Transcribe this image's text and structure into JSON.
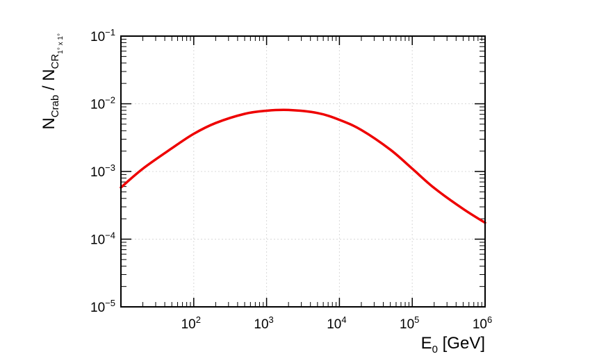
{
  "chart_data": {
    "type": "line",
    "xscale": "log",
    "yscale": "log",
    "xlim": [
      10,
      1000000
    ],
    "ylim": [
      1e-05,
      0.1
    ],
    "grid": true,
    "xlabel": {
      "main": "E",
      "sub": "0",
      "unit": " [GeV]"
    },
    "ylabel": {
      "main1": "N",
      "sub1": "Crab",
      "sep": " / N",
      "sub2": "CR",
      "subsub": "1° x 1°"
    },
    "x_ticks": [
      {
        "value": 100,
        "base": "10",
        "exp": "2"
      },
      {
        "value": 1000,
        "base": "10",
        "exp": "3"
      },
      {
        "value": 10000,
        "base": "10",
        "exp": "4"
      },
      {
        "value": 100000,
        "base": "10",
        "exp": "5"
      },
      {
        "value": 1000000,
        "base": "10",
        "exp": "6"
      }
    ],
    "y_ticks": [
      {
        "value": 1e-05,
        "base": "10",
        "exp": "−5"
      },
      {
        "value": 0.0001,
        "base": "10",
        "exp": "−4"
      },
      {
        "value": 0.001,
        "base": "10",
        "exp": "−3"
      },
      {
        "value": 0.01,
        "base": "10",
        "exp": "−2"
      },
      {
        "value": 0.1,
        "base": "10",
        "exp": "−1"
      }
    ],
    "series": [
      {
        "color": "#ee0000",
        "x": [
          10,
          20,
          50,
          100,
          200,
          500,
          1000,
          2000,
          5000,
          10000,
          20000,
          50000,
          100000,
          200000,
          500000,
          1000000
        ],
        "y": [
          0.00058,
          0.0011,
          0.0022,
          0.0036,
          0.0052,
          0.0071,
          0.0079,
          0.0081,
          0.0073,
          0.0058,
          0.0041,
          0.0021,
          0.0011,
          0.00057,
          0.00028,
          0.000175
        ]
      }
    ]
  }
}
